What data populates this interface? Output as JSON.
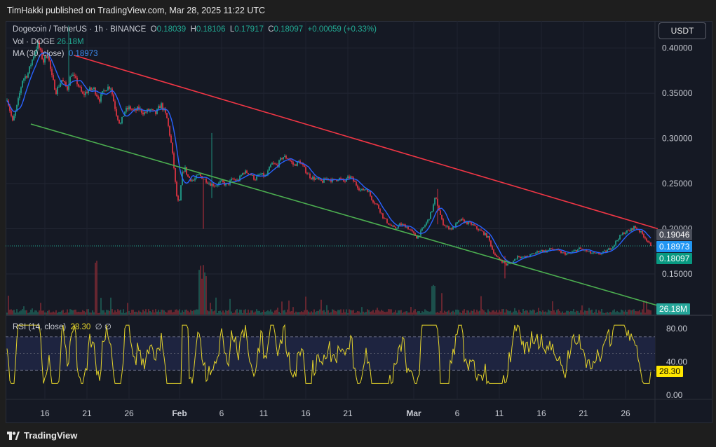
{
  "header": {
    "published": "TimHakki published on TradingView.com, Mar 28, 2025 11:22 UTC"
  },
  "legend": {
    "symbol": "Dogecoin / TetherUS · 1h · BINANCE",
    "o_label": "O",
    "o": "0.18039",
    "h_label": "H",
    "h": "0.18106",
    "l_label": "L",
    "l": "0.17917",
    "c_label": "C",
    "c": "0.18097",
    "change": "+0.00059 (+0.33%)",
    "vol_label": "Vol · DOGE",
    "vol": "26.18M",
    "ma_label": "MA (30, close)",
    "ma": "0.18973",
    "rsi_label": "RSI (14, close)",
    "rsi": "28.30",
    "rsi_extra": "∅ ∅"
  },
  "currency": "USDT",
  "price_tags": {
    "high_line": "0.19046",
    "ma": "0.18973",
    "last": "0.18097",
    "volume": "26.18M",
    "rsi": "28.30"
  },
  "colors": {
    "up": "#22ab94",
    "down": "#f23645",
    "ma": "#2962ff",
    "resistance": "#f23645",
    "support": "#4caf50",
    "rsi": "#e6d52a",
    "tag_gray": "#4a4e5a",
    "tag_blue": "#2196f3",
    "tag_green": "#089981",
    "tag_vol": "#26a69a",
    "tag_rsi": "#ffe600"
  },
  "brand": "TradingView",
  "chart_data": {
    "type": "candlestick",
    "price_axis": {
      "ticks": [
        "0.40000",
        "0.35000",
        "0.30000",
        "0.25000",
        "0.20000",
        "0.15000"
      ],
      "range": [
        0.105,
        0.43
      ]
    },
    "rsi_axis": {
      "ticks": [
        "80.00",
        "40.00",
        "0.00"
      ],
      "band": [
        30,
        70
      ],
      "range": [
        -5,
        95
      ]
    },
    "time_axis": {
      "labels": [
        "16",
        "21",
        "26",
        "Feb",
        "6",
        "11",
        "16",
        "21",
        "Mar",
        "6",
        "11",
        "16",
        "21",
        "26"
      ],
      "bold": [
        "Feb",
        "Mar"
      ]
    },
    "close_anchors": [
      [
        0,
        0.345
      ],
      [
        8,
        0.318
      ],
      [
        15,
        0.338
      ],
      [
        22,
        0.365
      ],
      [
        30,
        0.372
      ],
      [
        38,
        0.392
      ],
      [
        44,
        0.405
      ],
      [
        52,
        0.385
      ],
      [
        58,
        0.395
      ],
      [
        64,
        0.368
      ],
      [
        70,
        0.352
      ],
      [
        78,
        0.365
      ],
      [
        86,
        0.355
      ],
      [
        92,
        0.372
      ],
      [
        100,
        0.362
      ],
      [
        108,
        0.348
      ],
      [
        116,
        0.353
      ],
      [
        124,
        0.355
      ],
      [
        132,
        0.343
      ],
      [
        140,
        0.355
      ],
      [
        148,
        0.358
      ],
      [
        156,
        0.328
      ],
      [
        162,
        0.315
      ],
      [
        168,
        0.33
      ],
      [
        175,
        0.334
      ],
      [
        182,
        0.33
      ],
      [
        188,
        0.333
      ],
      [
        196,
        0.328
      ],
      [
        204,
        0.332
      ],
      [
        212,
        0.327
      ],
      [
        220,
        0.338
      ],
      [
        228,
        0.324
      ],
      [
        234,
        0.298
      ],
      [
        238,
        0.272
      ],
      [
        242,
        0.238
      ],
      [
        246,
        0.225
      ],
      [
        250,
        0.26
      ],
      [
        254,
        0.268
      ],
      [
        258,
        0.258
      ],
      [
        266,
        0.253
      ],
      [
        274,
        0.26
      ],
      [
        282,
        0.255
      ],
      [
        290,
        0.25
      ],
      [
        298,
        0.248
      ],
      [
        306,
        0.252
      ],
      [
        314,
        0.248
      ],
      [
        322,
        0.255
      ],
      [
        330,
        0.253
      ],
      [
        338,
        0.263
      ],
      [
        346,
        0.262
      ],
      [
        354,
        0.255
      ],
      [
        362,
        0.26
      ],
      [
        370,
        0.258
      ],
      [
        378,
        0.272
      ],
      [
        386,
        0.27
      ],
      [
        394,
        0.28
      ],
      [
        402,
        0.278
      ],
      [
        410,
        0.27
      ],
      [
        418,
        0.275
      ],
      [
        426,
        0.265
      ],
      [
        434,
        0.257
      ],
      [
        442,
        0.255
      ],
      [
        450,
        0.252
      ],
      [
        458,
        0.256
      ],
      [
        466,
        0.253
      ],
      [
        474,
        0.256
      ],
      [
        482,
        0.252
      ],
      [
        490,
        0.258
      ],
      [
        498,
        0.25
      ],
      [
        506,
        0.242
      ],
      [
        514,
        0.245
      ],
      [
        522,
        0.232
      ],
      [
        530,
        0.225
      ],
      [
        538,
        0.212
      ],
      [
        546,
        0.205
      ],
      [
        554,
        0.2
      ],
      [
        562,
        0.205
      ],
      [
        570,
        0.203
      ],
      [
        578,
        0.197
      ],
      [
        586,
        0.19
      ],
      [
        594,
        0.2
      ],
      [
        602,
        0.21
      ],
      [
        608,
        0.222
      ],
      [
        612,
        0.235
      ],
      [
        616,
        0.225
      ],
      [
        622,
        0.207
      ],
      [
        628,
        0.202
      ],
      [
        636,
        0.2
      ],
      [
        642,
        0.205
      ],
      [
        648,
        0.21
      ],
      [
        656,
        0.207
      ],
      [
        664,
        0.205
      ],
      [
        672,
        0.2
      ],
      [
        680,
        0.196
      ],
      [
        688,
        0.19
      ],
      [
        694,
        0.176
      ],
      [
        700,
        0.168
      ],
      [
        706,
        0.165
      ],
      [
        714,
        0.16
      ],
      [
        722,
        0.163
      ],
      [
        730,
        0.17
      ],
      [
        738,
        0.168
      ],
      [
        746,
        0.17
      ],
      [
        754,
        0.173
      ],
      [
        762,
        0.176
      ],
      [
        770,
        0.175
      ],
      [
        778,
        0.178
      ],
      [
        786,
        0.176
      ],
      [
        794,
        0.173
      ],
      [
        802,
        0.172
      ],
      [
        810,
        0.175
      ],
      [
        818,
        0.178
      ],
      [
        826,
        0.176
      ],
      [
        834,
        0.173
      ],
      [
        842,
        0.172
      ],
      [
        850,
        0.173
      ],
      [
        858,
        0.176
      ],
      [
        866,
        0.181
      ],
      [
        874,
        0.19
      ],
      [
        882,
        0.196
      ],
      [
        890,
        0.198
      ],
      [
        896,
        0.202
      ],
      [
        902,
        0.199
      ],
      [
        908,
        0.194
      ],
      [
        914,
        0.188
      ],
      [
        920,
        0.181
      ]
    ],
    "spikes": [
      {
        "x": 280,
        "low": 0.2,
        "high": 0.246
      },
      {
        "x": 292,
        "low": 0.234,
        "high": 0.306
      },
      {
        "x": 616,
        "low": 0.205,
        "high": 0.244
      },
      {
        "x": 712,
        "low": 0.145,
        "high": 0.17
      },
      {
        "x": 88,
        "low": 0.38,
        "high": 0.425
      }
    ],
    "x_range": [
      0,
      920
    ],
    "resistance_line": [
      [
        96,
        0.392
      ],
      [
        930,
        0.2
      ]
    ],
    "support_line": [
      [
        34,
        0.316
      ],
      [
        930,
        0.115
      ]
    ],
    "last_price": 0.18097,
    "volume_label": "26.18M",
    "rsi_last": 28.3
  }
}
